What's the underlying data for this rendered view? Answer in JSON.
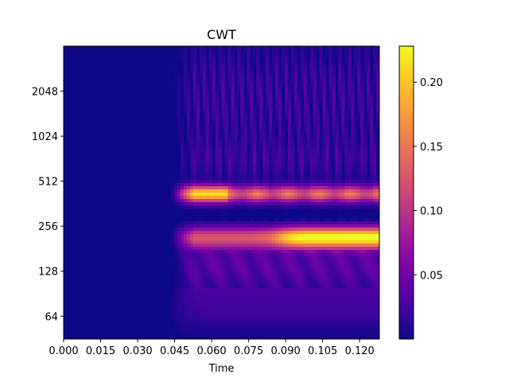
{
  "chart_data": {
    "type": "heatmap",
    "title": "CWT",
    "xlabel": "Time",
    "ylabel": "",
    "xlim": [
      0.0,
      0.128
    ],
    "ylim": [
      45,
      4096
    ],
    "y_scale": "log2",
    "x_ticks": [
      "0.000",
      "0.015",
      "0.030",
      "0.045",
      "0.060",
      "0.075",
      "0.090",
      "0.105",
      "0.120"
    ],
    "y_ticks": [
      "64",
      "128",
      "256",
      "512",
      "1024",
      "2048"
    ],
    "colormap": "plasma",
    "colorbar": {
      "range": [
        0.0,
        0.228
      ],
      "ticks": [
        "0.05",
        "0.10",
        "0.15",
        "0.20"
      ]
    },
    "features": [
      {
        "desc": "near-zero response",
        "time": [
          0.0,
          0.043
        ],
        "value": 0.0
      },
      {
        "desc": "strong band",
        "time": [
          0.048,
          0.066
        ],
        "frequency": 420,
        "value": 0.22
      },
      {
        "desc": "band",
        "time": [
          0.066,
          0.128
        ],
        "frequency": 420,
        "value": 0.17
      },
      {
        "desc": "strong band",
        "time": [
          0.088,
          0.128
        ],
        "frequency": 220,
        "value": 0.22
      },
      {
        "desc": "band",
        "time": [
          0.045,
          0.088
        ],
        "frequency": 220,
        "value": 0.13
      },
      {
        "desc": "dark notch row",
        "frequency": 300,
        "value": 0.04
      },
      {
        "desc": "low-frequency glow",
        "time": [
          0.045,
          0.128
        ],
        "frequency": 140,
        "value": 0.06
      }
    ]
  }
}
